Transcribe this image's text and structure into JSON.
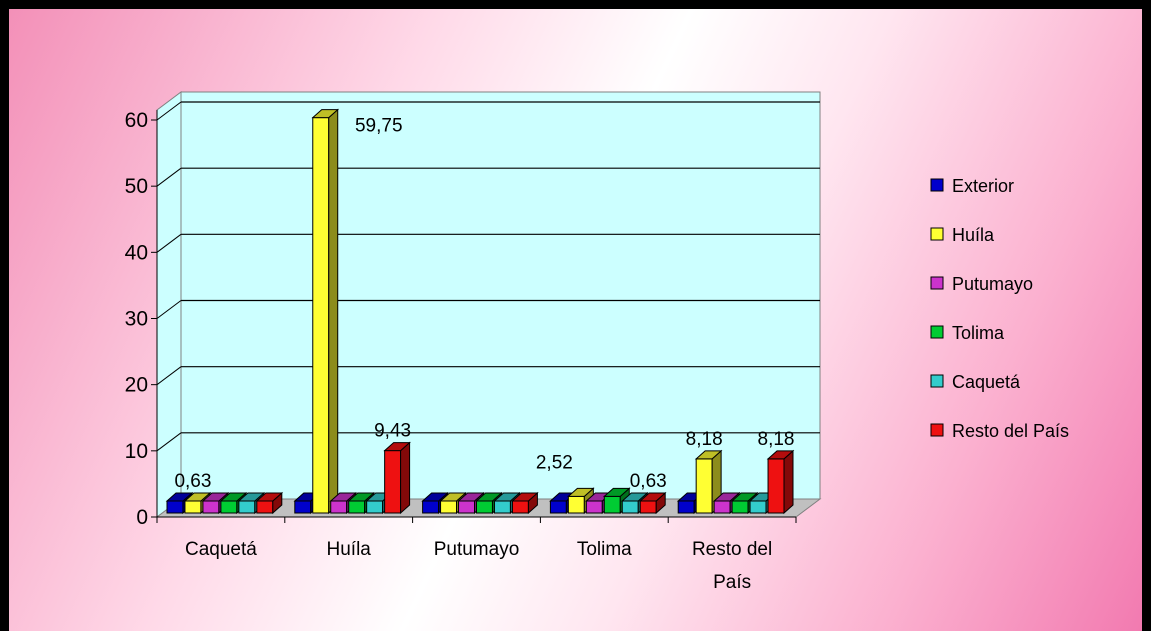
{
  "chart_data": {
    "type": "bar",
    "categories": [
      "Caquetá",
      "Huíla",
      "Putumayo",
      "Tolima",
      "Resto del País"
    ],
    "ylim": [
      0,
      60
    ],
    "yticks": [
      0,
      10,
      20,
      30,
      40,
      50,
      60
    ],
    "series": [
      {
        "name": "Exterior",
        "color": "#0000cc",
        "values": [
          0,
          0,
          0,
          0,
          0
        ]
      },
      {
        "name": "Huíla",
        "color": "#ffff33",
        "values": [
          0.63,
          59.75,
          0,
          2.52,
          8.18
        ]
      },
      {
        "name": "Putumayo",
        "color": "#cc33cc",
        "values": [
          0,
          0,
          0.63,
          0,
          0
        ]
      },
      {
        "name": "Tolima",
        "color": "#00cc33",
        "values": [
          0,
          0.63,
          0,
          2.52,
          0.63
        ]
      },
      {
        "name": "Caquetá",
        "color": "#33cccc",
        "values": [
          0.63,
          0.63,
          0,
          0,
          0
        ]
      },
      {
        "name": "Resto del  País",
        "color": "#ee1111",
        "values": [
          0,
          9.43,
          0,
          0.63,
          8.18
        ]
      }
    ],
    "data_labels": [
      {
        "text": "0,63",
        "category": 0,
        "series": 1
      },
      {
        "text": "59,75",
        "category": 1,
        "series": 1
      },
      {
        "text": "9,43",
        "category": 1,
        "series": 5
      },
      {
        "text": "2,52",
        "category": 3,
        "series": 1
      },
      {
        "text": "0,63",
        "category": 3,
        "series": 5
      },
      {
        "text": "8,18",
        "category": 4,
        "series": 1
      },
      {
        "text": "8,18",
        "category": 4,
        "series": 5
      }
    ],
    "grid": true,
    "legend_position": "right"
  }
}
